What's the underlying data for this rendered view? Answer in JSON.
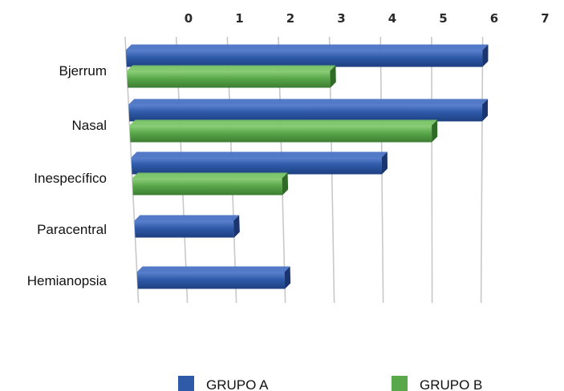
{
  "chart_data": {
    "type": "bar",
    "orientation": "horizontal",
    "style": "3d",
    "categories": [
      "Bjerrum",
      "Nasal",
      "Inespecífico",
      "Paracentral",
      "Hemianopsia"
    ],
    "x_ticks": [
      "0",
      "1",
      "2",
      "3",
      "4",
      "5",
      "6",
      "7"
    ],
    "xlim": [
      0,
      7
    ],
    "grid": true,
    "legend_position": "bottom",
    "series": [
      {
        "name": "GRUPO A",
        "color": "#2F5AA8",
        "values": [
          7,
          7,
          5,
          2,
          3
        ]
      },
      {
        "name": "GRUPO B",
        "color": "#59A84A",
        "values": [
          4,
          6,
          3,
          null,
          null
        ]
      }
    ]
  }
}
